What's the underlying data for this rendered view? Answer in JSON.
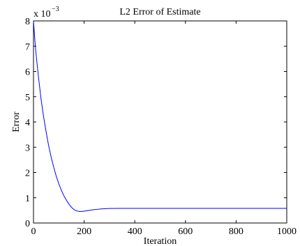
{
  "chart_data": {
    "type": "line",
    "title": "L2 Error of Estimate",
    "xlabel": "Iteration",
    "ylabel": "Error",
    "y_multiplier_label": "x 10",
    "y_multiplier_exponent": "−3",
    "xlim": [
      0,
      1000
    ],
    "ylim": [
      0,
      8
    ],
    "x_ticks": [
      0,
      200,
      400,
      600,
      800,
      1000
    ],
    "x_tick_labels": [
      "0",
      "200",
      "400",
      "600",
      "800",
      "1000"
    ],
    "y_ticks": [
      0,
      1,
      2,
      3,
      4,
      5,
      6,
      7,
      8
    ],
    "y_tick_labels": [
      "0",
      "1",
      "2",
      "3",
      "4",
      "5",
      "6",
      "7",
      "8"
    ],
    "grid": false,
    "series": [
      {
        "color": "#0000ff",
        "x": [
          0,
          5,
          10,
          20,
          30,
          40,
          50,
          60,
          70,
          80,
          90,
          100,
          110,
          120,
          130,
          140,
          150,
          160,
          170,
          180,
          190,
          200,
          220,
          240,
          260,
          280,
          300,
          350,
          400,
          500,
          600,
          700,
          800,
          900,
          1000
        ],
        "y": [
          8.0,
          7.3,
          6.7,
          5.75,
          4.9,
          4.2,
          3.6,
          3.05,
          2.6,
          2.2,
          1.85,
          1.55,
          1.3,
          1.08,
          0.9,
          0.75,
          0.62,
          0.53,
          0.48,
          0.46,
          0.46,
          0.47,
          0.5,
          0.53,
          0.55,
          0.565,
          0.575,
          0.58,
          0.58,
          0.58,
          0.58,
          0.58,
          0.58,
          0.58,
          0.58
        ]
      }
    ]
  }
}
